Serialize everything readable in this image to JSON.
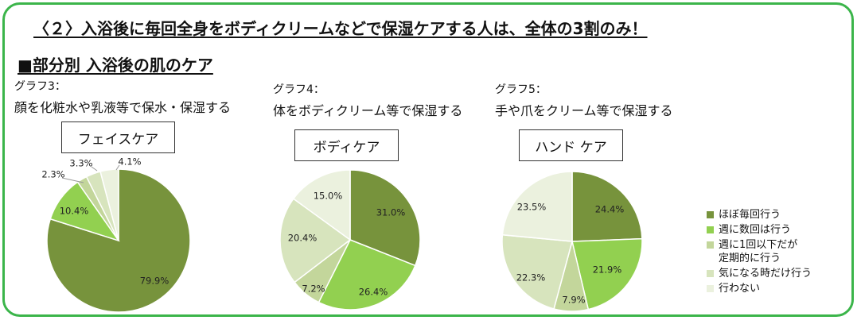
{
  "headline": "〈２〉入浴後に毎回全身をボディクリームなどで保湿ケアする人は、全体の3割のみ！",
  "section_title": "■部分別 入浴後の肌のケア",
  "charts": [
    {
      "graph_label": "グラフ3：",
      "description": "顔を化粧水や乳液等で保水・保湿する",
      "box_label": "フェイスケア"
    },
    {
      "graph_label": "グラフ4：",
      "description": "体をボディクリーム等で保湿する",
      "box_label": "ボディケア"
    },
    {
      "graph_label": "グラフ5：",
      "description": "手や爪をクリーム等で保湿する",
      "box_label": "ハンド ケア"
    }
  ],
  "legend": [
    {
      "label": "ほぼ毎回行う",
      "color": "#77933c"
    },
    {
      "label": "週に数回は行う",
      "color": "#92d050"
    },
    {
      "label": "週に1回以下だが\n定期的に行う",
      "color": "#c3d69b"
    },
    {
      "label": "気になる時だけ行う",
      "color": "#d7e4bd"
    },
    {
      "label": "行わない",
      "color": "#ebf1de"
    }
  ],
  "chart_data": [
    {
      "type": "pie",
      "title": "フェイスケア",
      "categories": [
        "ほぼ毎回行う",
        "週に数回は行う",
        "週に1回以下だが定期的に行う",
        "気になる時だけ行う",
        "行わない"
      ],
      "values": [
        79.9,
        10.4,
        2.3,
        3.3,
        4.1
      ],
      "labels": [
        "79.9%",
        "10.4%",
        "2.3%",
        "3.3%",
        "4.1%"
      ]
    },
    {
      "type": "pie",
      "title": "ボディケア",
      "categories": [
        "ほぼ毎回行う",
        "週に数回は行う",
        "週に1回以下だが定期的に行う",
        "気になる時だけ行う",
        "行わない"
      ],
      "values": [
        31.0,
        26.4,
        7.2,
        20.4,
        15.0
      ],
      "labels": [
        "31.0%",
        "26.4%",
        "7.2%",
        "20.4%",
        "15.0%"
      ]
    },
    {
      "type": "pie",
      "title": "ハンド ケア",
      "categories": [
        "ほぼ毎回行う",
        "週に数回は行う",
        "週に1回以下だが定期的に行う",
        "気になる時だけ行う",
        "行わない"
      ],
      "values": [
        24.4,
        21.9,
        7.9,
        22.3,
        23.5
      ],
      "labels": [
        "24.4%",
        "21.9%",
        "7.9%",
        "22.3%",
        "23.5%"
      ]
    }
  ]
}
